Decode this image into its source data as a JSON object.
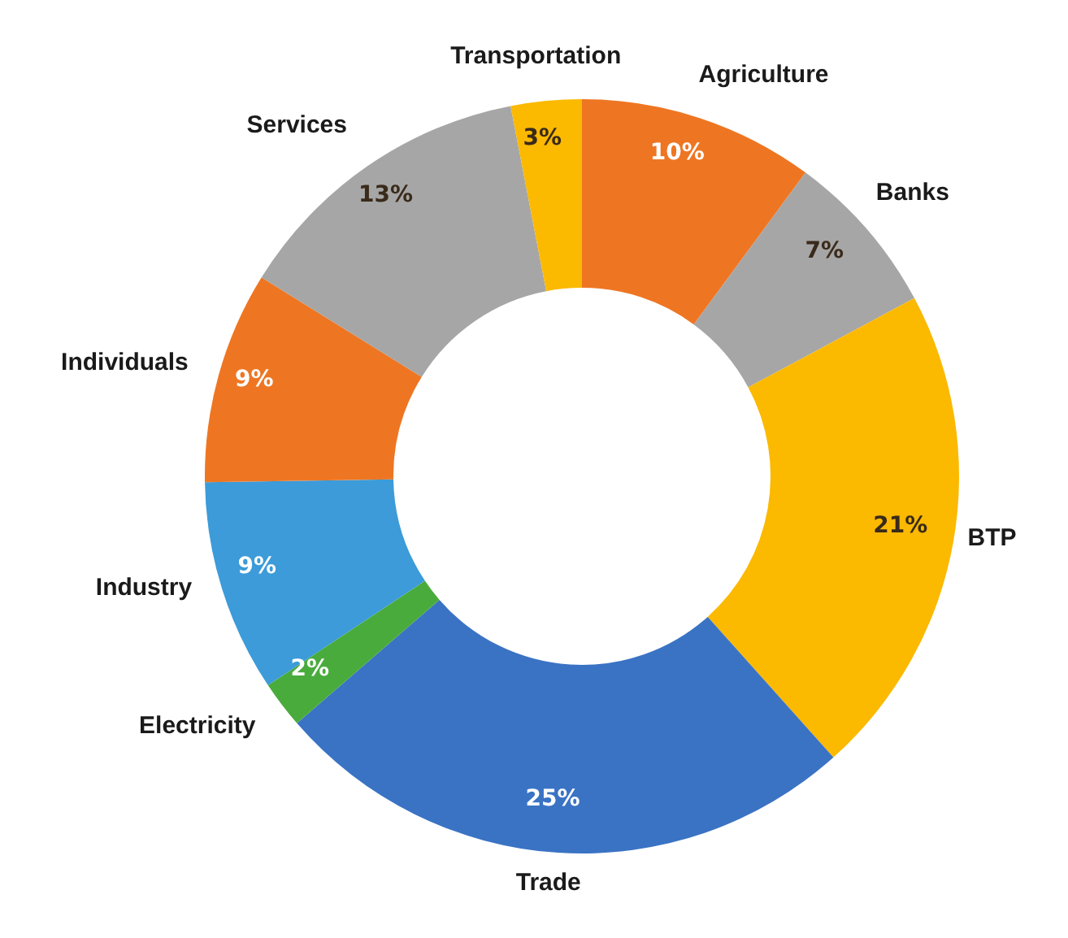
{
  "chart_data": {
    "type": "donut",
    "categories": [
      "Agriculture",
      "Banks",
      "BTP",
      "Trade",
      "Electricity",
      "Industry",
      "Individuals",
      "Services",
      "Transportation"
    ],
    "values": [
      10,
      7,
      21,
      25,
      2,
      9,
      9,
      13,
      3
    ],
    "value_labels": [
      "10%",
      "7%",
      "21%",
      "25%",
      "2%",
      "9%",
      "9%",
      "13%",
      "3%"
    ],
    "colors": [
      "#ee7623",
      "#a6a6a6",
      "#fbb900",
      "#3a73c4",
      "#4aab3d",
      "#3c9bd8",
      "#ee7623",
      "#a6a6a6",
      "#fbb900"
    ],
    "legend": false
  }
}
